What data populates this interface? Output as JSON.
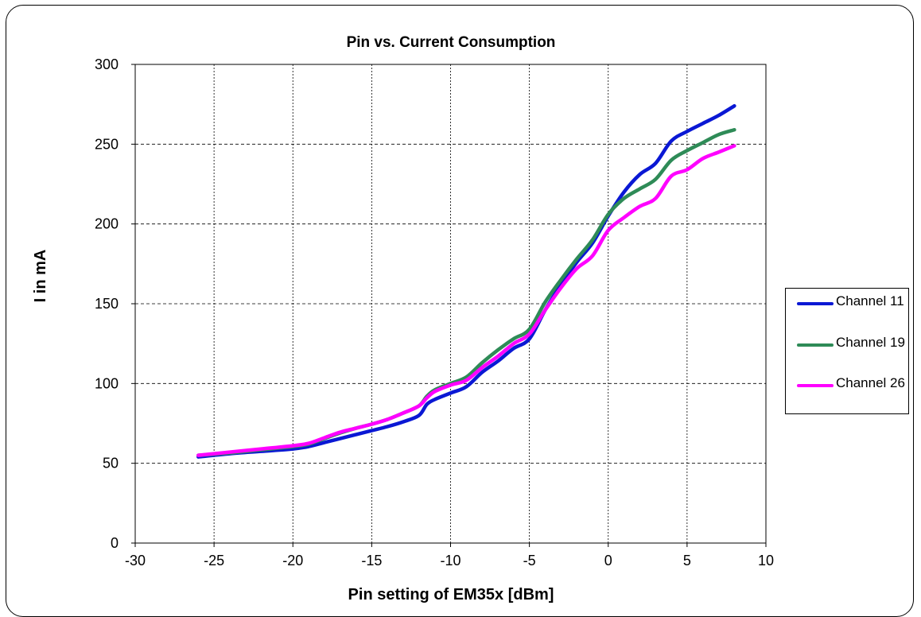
{
  "chart_data": {
    "type": "line",
    "title": "Pin vs. Current Consumption",
    "xlabel": "Pin setting of EM35x [dBm]",
    "ylabel": "I in mA",
    "xlim": [
      -30,
      10
    ],
    "ylim": [
      0,
      300
    ],
    "xticks": [
      -30,
      -25,
      -20,
      -15,
      -10,
      -5,
      0,
      5,
      10
    ],
    "yticks": [
      0,
      50,
      100,
      150,
      200,
      250,
      300
    ],
    "grid": true,
    "legend_position": "right",
    "series": [
      {
        "name": "Channel 11",
        "color": "#0a18d4",
        "x": [
          -26,
          -24,
          -22,
          -20,
          -19,
          -18,
          -17,
          -16,
          -15,
          -14,
          -13,
          -12,
          -11.5,
          -11,
          -10,
          -9,
          -8,
          -7,
          -6,
          -5,
          -4,
          -3,
          -2,
          -1,
          0,
          1,
          2,
          3,
          4,
          5,
          6,
          7,
          8
        ],
        "y": [
          54,
          56,
          57.5,
          59,
          60.5,
          63,
          65.5,
          68,
          70.5,
          73,
          76,
          80,
          87,
          90,
          94,
          98,
          107,
          114,
          122,
          128,
          146,
          162,
          176,
          188,
          205,
          220,
          231,
          238,
          252,
          258,
          263,
          268,
          274
        ]
      },
      {
        "name": "Channel 19",
        "color": "#2e8b57",
        "x": [
          -26,
          -24,
          -22,
          -20,
          -19,
          -18,
          -17,
          -16,
          -15,
          -14,
          -13,
          -12,
          -11.5,
          -11,
          -10,
          -9,
          -8,
          -7,
          -6,
          -5,
          -4,
          -3,
          -2,
          -1,
          0,
          1,
          2,
          3,
          4,
          5,
          6,
          7,
          8
        ],
        "y": [
          55,
          56.5,
          58.5,
          60.5,
          62,
          65.5,
          69,
          72,
          74.5,
          77.5,
          81.5,
          86,
          92,
          96,
          100,
          104,
          113,
          121,
          128,
          134,
          151,
          165,
          178,
          190,
          206,
          216,
          222,
          228,
          240,
          246,
          251,
          256,
          259
        ]
      },
      {
        "name": "Channel 26",
        "color": "#ff00ff",
        "x": [
          -26,
          -24,
          -22,
          -20,
          -19,
          -18,
          -17,
          -16,
          -15,
          -14,
          -13,
          -12,
          -11.5,
          -11,
          -10,
          -9,
          -8,
          -7,
          -6,
          -5,
          -4,
          -3,
          -2,
          -1,
          0,
          1,
          2,
          3,
          4,
          5,
          6,
          7,
          8
        ],
        "y": [
          55,
          57,
          59,
          61,
          62.5,
          66,
          69.5,
          72,
          74.5,
          77.5,
          81.5,
          86,
          91,
          95,
          99,
          102,
          110,
          117,
          125,
          131,
          146,
          160,
          172,
          180,
          196,
          204,
          211,
          216,
          230,
          234,
          241,
          245,
          249
        ]
      }
    ]
  }
}
